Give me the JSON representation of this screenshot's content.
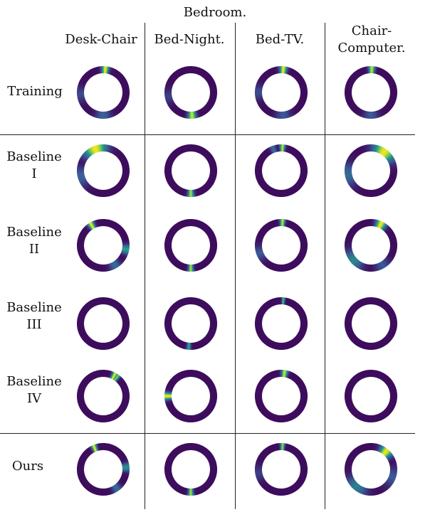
{
  "figure": {
    "title": "Bedroom.",
    "columns": [
      "Desk-Chair",
      "Bed-Night.",
      "Bed-TV.",
      "Chair-Computer."
    ],
    "rows": [
      {
        "label": [
          "Training"
        ]
      },
      {
        "label": [
          "Baseline",
          "I"
        ]
      },
      {
        "label": [
          "Baseline",
          "II"
        ]
      },
      {
        "label": [
          "Baseline",
          "III"
        ]
      },
      {
        "label": [
          "Baseline",
          "IV"
        ]
      },
      {
        "label": [
          "Ours"
        ]
      }
    ],
    "colors": {
      "base": "#3d0c5c",
      "blue": "#3b5897",
      "teal": "#26918a",
      "green": "#5ec962",
      "yellow": "#f2e51c"
    },
    "rings": [
      [
        [
          {
            "angle": 5,
            "width": 14,
            "peak": 1.0
          },
          {
            "angle": 180,
            "width": 30,
            "peak": 0.35
          },
          {
            "angle": 265,
            "width": 30,
            "peak": 0.25
          }
        ],
        [
          {
            "angle": 177,
            "width": 16,
            "peak": 0.95
          },
          {
            "angle": 260,
            "width": 30,
            "peak": 0.2
          }
        ],
        [
          {
            "angle": 5,
            "width": 14,
            "peak": 1.0
          },
          {
            "angle": 175,
            "width": 30,
            "peak": 0.3
          },
          {
            "angle": 270,
            "width": 30,
            "peak": 0.25
          }
        ],
        [
          {
            "angle": 2,
            "width": 12,
            "peak": 0.95
          },
          {
            "angle": 180,
            "width": 30,
            "peak": 0.3
          }
        ]
      ],
      [
        [
          {
            "angle": 340,
            "width": 45,
            "peak": 1.0
          },
          {
            "angle": 255,
            "width": 40,
            "peak": 0.35
          }
        ],
        [
          {
            "angle": 180,
            "width": 12,
            "peak": 0.9
          }
        ],
        [
          {
            "angle": 3,
            "width": 10,
            "peak": 0.95
          },
          {
            "angle": 340,
            "width": 12,
            "peak": 0.4
          }
        ],
        [
          {
            "angle": 35,
            "width": 45,
            "peak": 1.0
          },
          {
            "angle": 260,
            "width": 45,
            "peak": 0.4
          }
        ]
      ],
      [
        [
          {
            "angle": 330,
            "width": 12,
            "peak": 1.0
          },
          {
            "angle": 100,
            "width": 18,
            "peak": 0.65
          },
          {
            "angle": 150,
            "width": 22,
            "peak": 0.4
          }
        ],
        [
          {
            "angle": 180,
            "width": 10,
            "peak": 0.9
          }
        ],
        [
          {
            "angle": 3,
            "width": 10,
            "peak": 0.95
          },
          {
            "angle": 250,
            "width": 30,
            "peak": 0.3
          }
        ],
        [
          {
            "angle": 25,
            "width": 20,
            "peak": 1.0
          },
          {
            "angle": 230,
            "width": 40,
            "peak": 0.55
          },
          {
            "angle": 150,
            "width": 30,
            "peak": 0.3
          }
        ]
      ],
      [
        [],
        [
          {
            "angle": 185,
            "width": 8,
            "peak": 0.65
          }
        ],
        [
          {
            "angle": 5,
            "width": 6,
            "peak": 0.75
          }
        ],
        []
      ],
      [
        [
          {
            "angle": 28,
            "width": 10,
            "peak": 1.0
          },
          {
            "angle": 36,
            "width": 8,
            "peak": 0.85
          }
        ],
        [
          {
            "angle": 270,
            "width": 14,
            "peak": 1.0
          }
        ],
        [
          {
            "angle": 8,
            "width": 12,
            "peak": 0.95
          }
        ],
        []
      ],
      [
        [
          {
            "angle": 338,
            "width": 10,
            "peak": 1.0
          },
          {
            "angle": 85,
            "width": 16,
            "peak": 0.6
          },
          {
            "angle": 145,
            "width": 18,
            "peak": 0.4
          }
        ],
        [
          {
            "angle": 180,
            "width": 10,
            "peak": 0.9
          }
        ],
        [
          {
            "angle": 3,
            "width": 8,
            "peak": 0.9
          },
          {
            "angle": 260,
            "width": 30,
            "peak": 0.2
          }
        ],
        [
          {
            "angle": 40,
            "width": 25,
            "peak": 1.0
          },
          {
            "angle": 220,
            "width": 45,
            "peak": 0.5
          },
          {
            "angle": 110,
            "width": 40,
            "peak": 0.3
          }
        ]
      ]
    ]
  }
}
